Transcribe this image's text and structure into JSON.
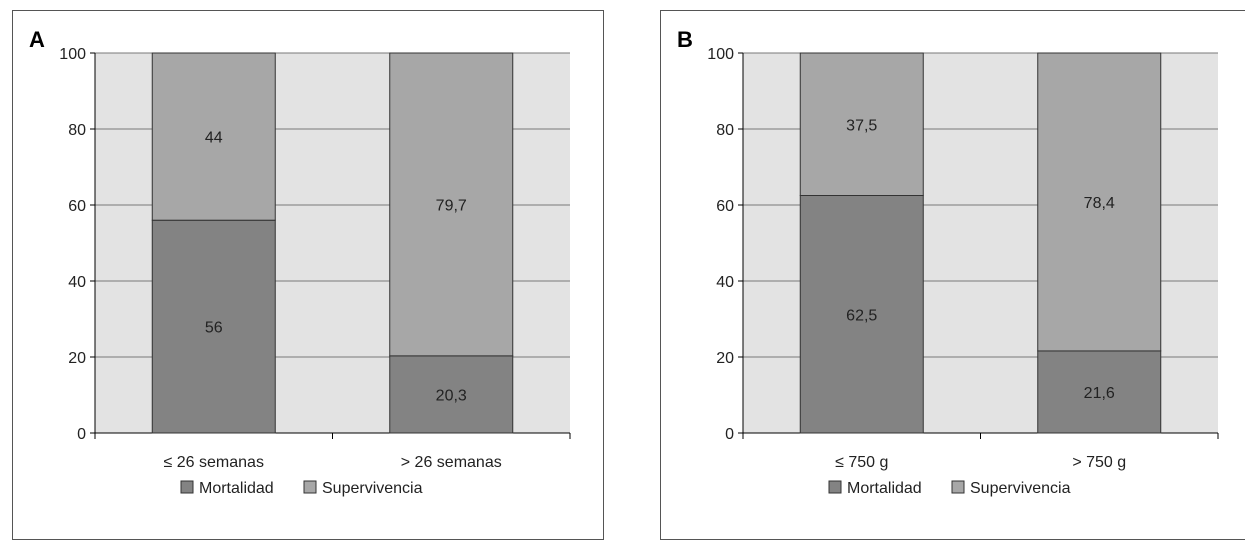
{
  "colors": {
    "plot_background": "#e3e3e3",
    "gridline": "#7a7a7a",
    "mortalidad": "#838383",
    "supervivencia": "#a7a7a7",
    "bar_border": "#333333"
  },
  "chart_data": [
    {
      "type": "bar",
      "stacked": true,
      "panel_label": "A",
      "categories": [
        "≤ 26 semanas",
        "> 26 semanas"
      ],
      "series": [
        {
          "name": "Mortalidad",
          "values": [
            56,
            20.3
          ],
          "labels": [
            "56",
            "20,3"
          ]
        },
        {
          "name": "Supervivencia",
          "values": [
            44,
            79.7
          ],
          "labels": [
            "44",
            "79,7"
          ]
        }
      ],
      "ylim": [
        0,
        100
      ],
      "yticks": [
        "0",
        "20",
        "40",
        "60",
        "80",
        "100"
      ],
      "legend_position": "bottom",
      "grid": true
    },
    {
      "type": "bar",
      "stacked": true,
      "panel_label": "B",
      "categories": [
        "≤ 750 g",
        "> 750 g"
      ],
      "series": [
        {
          "name": "Mortalidad",
          "values": [
            62.5,
            21.6
          ],
          "labels": [
            "62,5",
            "21,6"
          ]
        },
        {
          "name": "Supervivencia",
          "values": [
            37.5,
            78.4
          ],
          "labels": [
            "37,5",
            "78,4"
          ]
        }
      ],
      "ylim": [
        0,
        100
      ],
      "yticks": [
        "0",
        "20",
        "40",
        "60",
        "80",
        "100"
      ],
      "legend_position": "bottom",
      "grid": true
    }
  ]
}
